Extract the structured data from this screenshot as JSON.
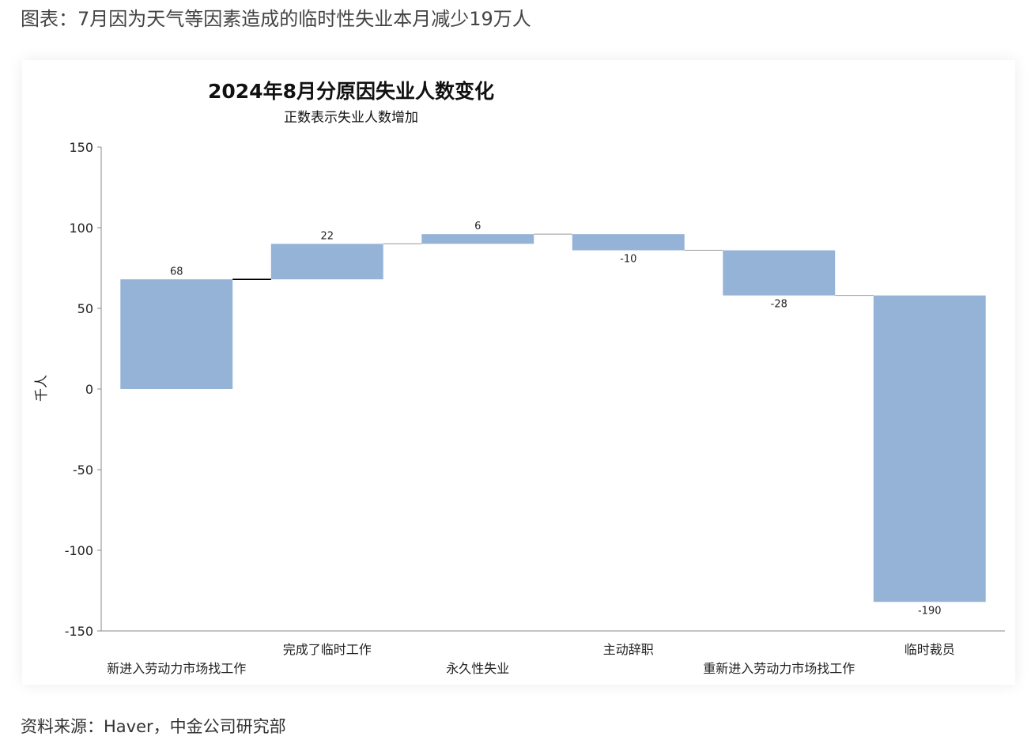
{
  "caption": "图表：7月因为天气等因素造成的临时性失业本月减少19万人",
  "source": "资料来源：Haver，中金公司研究部",
  "colors": {
    "bar": "#95b3d7",
    "axis": "#888888",
    "connector": "#000000"
  },
  "chart_data": {
    "type": "waterfall",
    "title": "2024年8月分原因失业人数变化",
    "subtitle": "正数表示失业人数增加",
    "ylabel": "千人",
    "xlabel": "",
    "ylim": [
      -150,
      150
    ],
    "yticks": [
      150,
      100,
      50,
      0,
      -50,
      -100,
      -150
    ],
    "grid": false,
    "categories": [
      "新进入劳动力市场找工作",
      "完成了临时工作",
      "永久性失业",
      "主动辞职",
      "重新进入劳动力市场找工作",
      "临时裁员"
    ],
    "values": [
      68,
      22,
      6,
      -10,
      -28,
      -190
    ],
    "data_labels": [
      "68",
      "22",
      "6",
      "-10",
      "-28",
      "-190"
    ]
  }
}
